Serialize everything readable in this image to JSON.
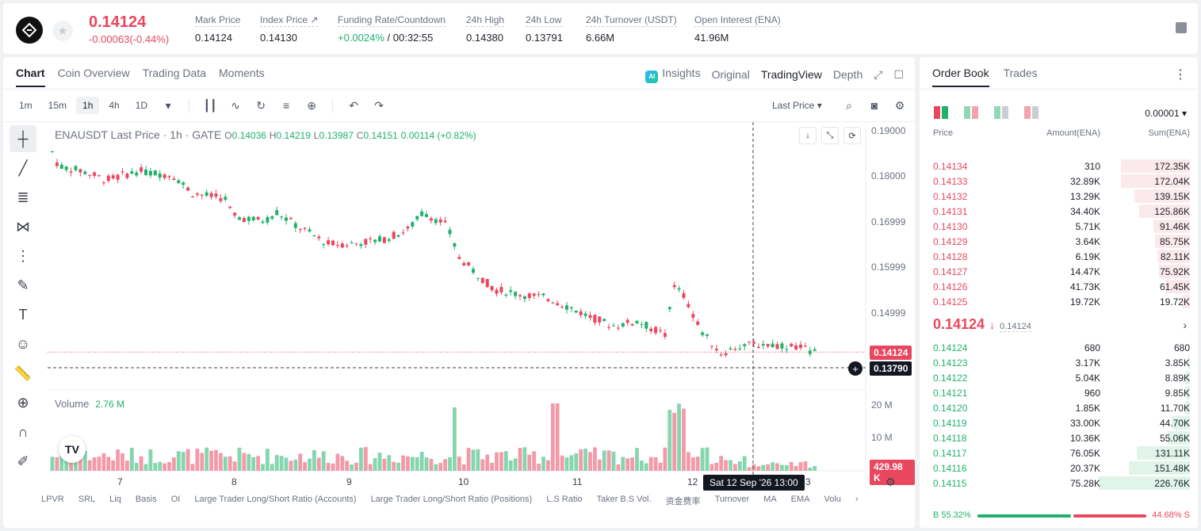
{
  "ticker": {
    "last_price": "0.14124",
    "change": "-0.00063(-0.44%)",
    "stats": [
      {
        "label": "Mark Price",
        "value": "0.14124"
      },
      {
        "label": "Index Price ↗",
        "value": "0.14130"
      },
      {
        "label": "Funding Rate/Countdown",
        "value_green": "+0.0024%",
        "value": " / 00:32:55"
      },
      {
        "label": "24h High",
        "value": "0.14380"
      },
      {
        "label": "24h Low",
        "value": "0.13791"
      },
      {
        "label": "24h Turnover (USDT)",
        "value": "6.66M"
      },
      {
        "label": "Open Interest (ENA)",
        "value": "41.96M"
      }
    ]
  },
  "chart_tabs": [
    "Chart",
    "Coin Overview",
    "Trading Data",
    "Moments"
  ],
  "chart_views": {
    "insights": "Insights",
    "insights_badge": "AI",
    "original": "Original",
    "tradingview": "TradingView",
    "depth": "Depth"
  },
  "intervals": [
    "1m",
    "15m",
    "1h",
    "4h",
    "1D"
  ],
  "price_type": "Last Price",
  "legend": {
    "symbol": "ENAUSDT Last Price · 1h · GATE",
    "o": "0.14036",
    "h": "0.14219",
    "l": "0.13987",
    "c": "0.14151",
    "chg": "0.00114 (+0.82%)"
  },
  "price_axis": [
    "0.19000",
    "0.18000",
    "0.16999",
    "0.15999",
    "0.14999"
  ],
  "last_price_tag": "0.14124",
  "crosshair_price_tag": "0.13790",
  "volume": {
    "label": "Volume",
    "value": "2.76 M",
    "axis": [
      "20 M",
      "10 M"
    ],
    "tag": "429.98 K"
  },
  "date_labels": [
    "7",
    "8",
    "9",
    "10",
    "11",
    "12",
    "3"
  ],
  "crosshair_date": "Sat 12 Sep '26   13:00",
  "indicators": [
    "LPVR",
    "SRL",
    "Liq",
    "Basis",
    "OI",
    "Large Trader Long/Short Ratio (Accounts)",
    "Large Trader Long/Short Ratio (Positions)",
    "L.S Ratio",
    "Taker B.S Vol.",
    "资金费率",
    "Turnover",
    "MA",
    "EMA",
    "Volu"
  ],
  "orderbook": {
    "tabs": [
      "Order Book",
      "Trades"
    ],
    "precision": "0.00001",
    "headers": {
      "price": "Price",
      "amount": "Amount(ENA)",
      "sum": "Sum(ENA)"
    },
    "asks": [
      {
        "price": "0.14134",
        "amount": "310",
        "sum": "172.35K",
        "depth": 0.76
      },
      {
        "price": "0.14133",
        "amount": "32.89K",
        "sum": "172.04K",
        "depth": 0.76
      },
      {
        "price": "0.14132",
        "amount": "13.29K",
        "sum": "139.15K",
        "depth": 0.61
      },
      {
        "price": "0.14131",
        "amount": "34.40K",
        "sum": "125.86K",
        "depth": 0.56
      },
      {
        "price": "0.14130",
        "amount": "5.71K",
        "sum": "91.46K",
        "depth": 0.4
      },
      {
        "price": "0.14129",
        "amount": "3.64K",
        "sum": "85.75K",
        "depth": 0.38
      },
      {
        "price": "0.14128",
        "amount": "6.19K",
        "sum": "82.11K",
        "depth": 0.36
      },
      {
        "price": "0.14127",
        "amount": "14.47K",
        "sum": "75.92K",
        "depth": 0.34
      },
      {
        "price": "0.14126",
        "amount": "41.73K",
        "sum": "61.45K",
        "depth": 0.27
      },
      {
        "price": "0.14125",
        "amount": "19.72K",
        "sum": "19.72K",
        "depth": 0.09
      }
    ],
    "mid": {
      "price": "0.14124",
      "arrow": "↓",
      "mark": "0.14124"
    },
    "bids": [
      {
        "price": "0.14124",
        "amount": "680",
        "sum": "680",
        "depth": 0.0
      },
      {
        "price": "0.14123",
        "amount": "3.17K",
        "sum": "3.85K",
        "depth": 0.02
      },
      {
        "price": "0.14122",
        "amount": "5.04K",
        "sum": "8.89K",
        "depth": 0.04
      },
      {
        "price": "0.14121",
        "amount": "960",
        "sum": "9.85K",
        "depth": 0.04
      },
      {
        "price": "0.14120",
        "amount": "1.85K",
        "sum": "11.70K",
        "depth": 0.05
      },
      {
        "price": "0.14119",
        "amount": "33.00K",
        "sum": "44.70K",
        "depth": 0.2
      },
      {
        "price": "0.14118",
        "amount": "10.36K",
        "sum": "55.06K",
        "depth": 0.24
      },
      {
        "price": "0.14117",
        "amount": "76.05K",
        "sum": "131.11K",
        "depth": 0.58
      },
      {
        "price": "0.14116",
        "amount": "20.37K",
        "sum": "151.48K",
        "depth": 0.67
      },
      {
        "price": "0.14115",
        "amount": "75.28K",
        "sum": "226.76K",
        "depth": 1.0
      }
    ],
    "buy_ratio": "B 55.32%",
    "sell_ratio": "44.68% S"
  },
  "colors": {
    "up": "#20b26c",
    "down": "#e8475f",
    "accent": "#131722"
  }
}
